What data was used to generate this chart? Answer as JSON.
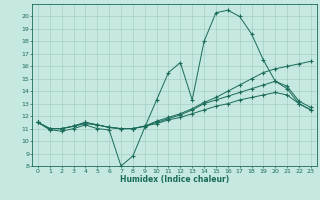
{
  "xlabel": "Humidex (Indice chaleur)",
  "xlim": [
    -0.5,
    23.5
  ],
  "ylim": [
    8,
    21
  ],
  "yticks": [
    8,
    9,
    10,
    11,
    12,
    13,
    14,
    15,
    16,
    17,
    18,
    19,
    20
  ],
  "xticks": [
    0,
    1,
    2,
    3,
    4,
    5,
    6,
    7,
    8,
    9,
    10,
    11,
    12,
    13,
    14,
    15,
    16,
    17,
    18,
    19,
    20,
    21,
    22,
    23
  ],
  "bg_color": "#c5e8e0",
  "line_color": "#1a6b5a",
  "grid_color": "#a0c8c0",
  "lines": [
    {
      "x": [
        0,
        1,
        2,
        3,
        4,
        5,
        6,
        7,
        8,
        9,
        10,
        11,
        12,
        13,
        14,
        15,
        16,
        17,
        18,
        19,
        20,
        21,
        22,
        23
      ],
      "y": [
        11.5,
        10.9,
        10.8,
        11.0,
        11.3,
        11.0,
        10.9,
        8.0,
        8.8,
        11.1,
        13.3,
        15.5,
        16.3,
        13.3,
        18.0,
        20.3,
        20.5,
        20.0,
        18.6,
        16.5,
        14.8,
        14.2,
        13.0,
        12.5
      ]
    },
    {
      "x": [
        0,
        1,
        2,
        3,
        4,
        5,
        6,
        7,
        8,
        9,
        10,
        11,
        12,
        13,
        14,
        15,
        16,
        17,
        18,
        19,
        20,
        21,
        22,
        23
      ],
      "y": [
        11.5,
        11.0,
        11.0,
        11.2,
        11.5,
        11.3,
        11.1,
        11.0,
        11.0,
        11.2,
        11.6,
        11.9,
        12.2,
        12.6,
        13.1,
        13.5,
        14.0,
        14.5,
        15.0,
        15.5,
        15.8,
        16.0,
        16.2,
        16.4
      ]
    },
    {
      "x": [
        0,
        1,
        2,
        3,
        4,
        5,
        6,
        7,
        8,
        9,
        10,
        11,
        12,
        13,
        14,
        15,
        16,
        17,
        18,
        19,
        20,
        21,
        22,
        23
      ],
      "y": [
        11.5,
        11.0,
        11.0,
        11.2,
        11.5,
        11.3,
        11.1,
        11.0,
        11.0,
        11.2,
        11.5,
        11.8,
        12.1,
        12.5,
        13.0,
        13.3,
        13.6,
        13.9,
        14.2,
        14.5,
        14.8,
        14.4,
        13.2,
        12.7
      ]
    },
    {
      "x": [
        0,
        1,
        2,
        3,
        4,
        5,
        6,
        7,
        8,
        9,
        10,
        11,
        12,
        13,
        14,
        15,
        16,
        17,
        18,
        19,
        20,
        21,
        22,
        23
      ],
      "y": [
        11.5,
        11.0,
        11.0,
        11.2,
        11.4,
        11.3,
        11.1,
        11.0,
        11.0,
        11.2,
        11.4,
        11.7,
        11.9,
        12.2,
        12.5,
        12.8,
        13.0,
        13.3,
        13.5,
        13.7,
        13.9,
        13.7,
        13.0,
        12.5
      ]
    }
  ]
}
